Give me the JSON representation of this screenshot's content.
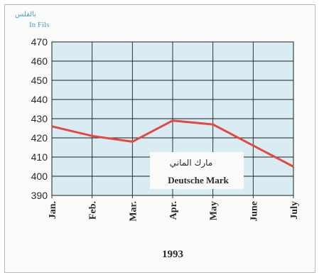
{
  "chart_data": {
    "type": "line",
    "unit_label_ar": "بالفلس",
    "unit_label_en": "In Fils",
    "categories": [
      "Jan.",
      "Feb.",
      "Mar.",
      "Apr.",
      "May",
      "June",
      "July"
    ],
    "series": [
      {
        "name_ar": "مارك الماني",
        "name": "Deutsche Mark",
        "values": [
          426,
          421,
          418,
          429,
          427,
          416,
          405
        ]
      }
    ],
    "xlabel": "1993",
    "ylim": [
      390,
      470
    ],
    "yticks": [
      390,
      400,
      410,
      420,
      430,
      440,
      450,
      460,
      470
    ],
    "grid": true,
    "colors": {
      "line": "#e4483e",
      "plot_bg": "#d9ecf3",
      "grid": "#1e1e1e"
    }
  }
}
